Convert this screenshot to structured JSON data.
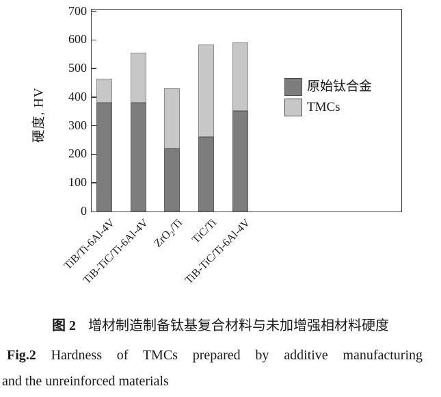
{
  "chart_data": {
    "type": "bar",
    "stacked": true,
    "title": "",
    "xlabel": "",
    "ylabel": "硬度, HV",
    "ylim": [
      0,
      700
    ],
    "yticks": [
      0,
      100,
      200,
      300,
      400,
      500,
      600,
      700
    ],
    "grid": false,
    "legend_position": "inside-right",
    "frame_color": "#3f3f3f",
    "categories": [
      "TiB/Ti-6Al-4V",
      "TiB-TiC/Ti-6Al-4V",
      "ZrO₂/Ti",
      "TiC/Ti",
      "TiB-TiC/Ti-6Al-4V"
    ],
    "series": [
      {
        "name": "原始钛合金",
        "role": "unreinforced-matrix-hardness-lower-segment",
        "color": "#7d7d7d",
        "border_color": "#5f5f5f",
        "values": [
          380,
          380,
          220,
          260,
          352
        ]
      },
      {
        "name": "TMCs",
        "role": "composite-hardness-bar-top",
        "color": "#c7c7c7",
        "border_color": "#8c8c8c",
        "values": [
          465,
          555,
          430,
          585,
          590
        ]
      }
    ]
  },
  "caption": {
    "zh_label": "图 2",
    "zh_text": "增材制造制备钛基复合材料与未加增强相材料硬度",
    "en_label": "Fig.2",
    "en_text": "Hardness of TMCs prepared by additive manufacturing",
    "en_text_cont": "and the unreinforced materials"
  },
  "colors": {
    "background": "#ffffff",
    "text": "#1a1a1a",
    "axis": "#3f3f3f"
  }
}
